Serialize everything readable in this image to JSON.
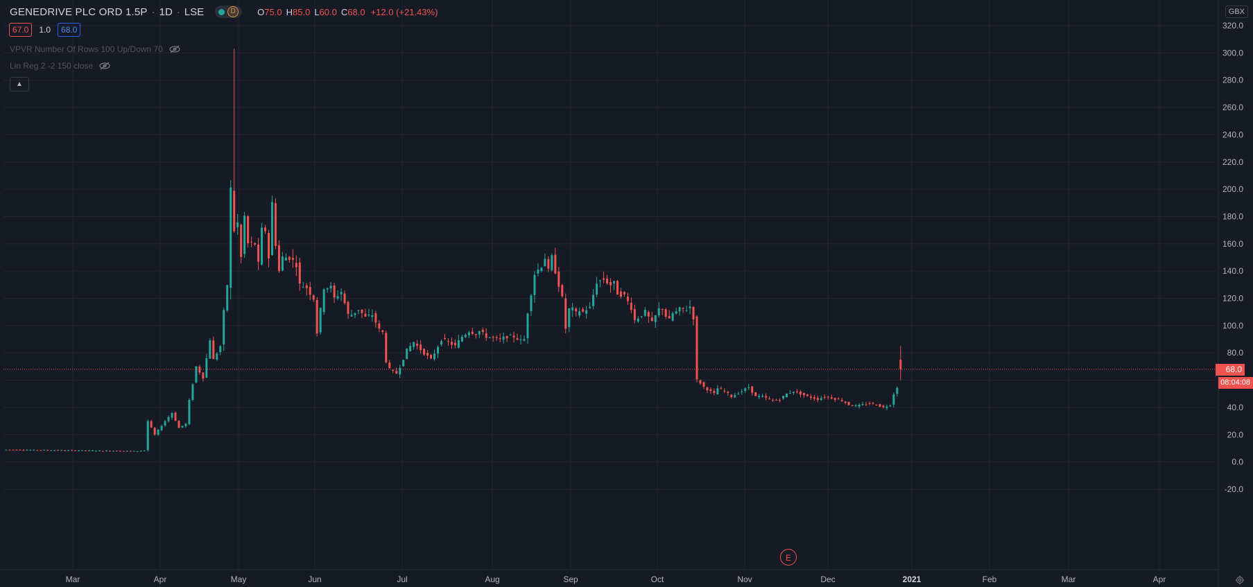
{
  "header": {
    "symbol": "GENEDRIVE PLC ORD 1.5P",
    "interval": "1D",
    "exchange": "LSE",
    "status_badge": "D",
    "ohlc": {
      "o_label": "O",
      "o": "75.0",
      "h_label": "H",
      "h": "85.0",
      "l_label": "L",
      "l": "60.0",
      "c_label": "C",
      "c": "68.0",
      "change": "+12.0 (+21.43%)"
    }
  },
  "spread": {
    "bid": "67.0",
    "spread": "1.0",
    "ask": "68.0"
  },
  "indicators": [
    {
      "label": "VPVR Number Of Rows 100 Up/Down 70"
    },
    {
      "label": "Lin Reg 2 -2 150 close"
    }
  ],
  "currency": "GBX",
  "last_price_tag": "68.0",
  "countdown": "08:04:08",
  "earnings_marker": "E",
  "colors": {
    "background": "#161a25",
    "up": "#26a69a",
    "down": "#ef5350",
    "grid": "#232632",
    "text": "#b2b5be"
  },
  "chart_data": {
    "type": "candlestick",
    "y_axis_ticks": [
      "320.0",
      "300.0",
      "280.0",
      "260.0",
      "240.0",
      "220.0",
      "200.0",
      "180.0",
      "160.0",
      "140.0",
      "120.0",
      "100.0",
      "80.0",
      "60.0",
      "40.0",
      "20.0",
      "0.0",
      "-20.0"
    ],
    "x_axis_ticks": [
      "Mar",
      "Apr",
      "May",
      "Jun",
      "Jul",
      "Aug",
      "Sep",
      "Oct",
      "Nov",
      "Dec",
      "2021",
      "Feb",
      "Mar",
      "Apr"
    ],
    "ylim": [
      -20,
      320
    ],
    "last_price": 68.0,
    "anchors": [
      [
        0,
        9
      ],
      [
        38,
        8
      ],
      [
        40,
        8.5
      ],
      [
        41,
        30
      ],
      [
        43,
        20
      ],
      [
        46,
        30
      ],
      [
        48,
        36
      ],
      [
        50,
        25
      ],
      [
        52,
        28
      ],
      [
        53,
        45
      ],
      [
        55,
        70
      ],
      [
        57,
        62
      ],
      [
        59,
        90
      ],
      [
        60,
        75
      ],
      [
        62,
        85
      ],
      [
        63,
        110
      ],
      [
        64,
        130
      ],
      [
        65,
        200
      ],
      [
        66,
        170
      ],
      [
        67,
        175
      ],
      [
        68,
        150
      ],
      [
        69,
        180
      ],
      [
        70,
        160
      ],
      [
        72,
        160
      ],
      [
        73,
        145
      ],
      [
        74,
        170
      ],
      [
        75,
        170
      ],
      [
        76,
        150
      ],
      [
        77,
        190
      ],
      [
        78,
        160
      ],
      [
        79,
        140
      ],
      [
        80,
        150
      ],
      [
        82,
        150
      ],
      [
        84,
        145
      ],
      [
        85,
        130
      ],
      [
        87,
        128
      ],
      [
        89,
        120
      ],
      [
        90,
        95
      ],
      [
        92,
        128
      ],
      [
        94,
        128
      ],
      [
        95,
        120
      ],
      [
        97,
        125
      ],
      [
        99,
        108
      ],
      [
        100,
        108
      ],
      [
        102,
        112
      ],
      [
        104,
        106
      ],
      [
        106,
        108
      ],
      [
        108,
        97
      ],
      [
        109,
        95
      ],
      [
        110,
        74
      ],
      [
        111,
        68
      ],
      [
        113,
        65
      ],
      [
        114,
        70
      ],
      [
        116,
        82
      ],
      [
        118,
        88
      ],
      [
        119,
        85
      ],
      [
        121,
        80
      ],
      [
        123,
        75
      ],
      [
        124,
        80
      ],
      [
        126,
        90
      ],
      [
        128,
        88
      ],
      [
        130,
        85
      ],
      [
        132,
        92
      ],
      [
        134,
        96
      ],
      [
        136,
        94
      ],
      [
        137,
        96
      ],
      [
        139,
        92
      ],
      [
        141,
        91
      ],
      [
        143,
        90
      ],
      [
        145,
        92
      ],
      [
        147,
        92
      ],
      [
        149,
        89
      ],
      [
        150,
        90
      ],
      [
        151,
        110
      ],
      [
        153,
        138
      ],
      [
        155,
        144
      ],
      [
        156,
        150
      ],
      [
        157,
        140
      ],
      [
        158,
        150
      ],
      [
        160,
        130
      ],
      [
        161,
        120
      ],
      [
        162,
        98
      ],
      [
        163,
        112
      ],
      [
        164,
        112
      ],
      [
        165,
        109
      ],
      [
        166,
        111
      ],
      [
        167,
        110
      ],
      [
        168,
        112
      ],
      [
        169,
        113
      ],
      [
        171,
        132
      ],
      [
        173,
        134
      ],
      [
        175,
        130
      ],
      [
        176,
        131
      ],
      [
        177,
        124
      ],
      [
        179,
        122
      ],
      [
        181,
        113
      ],
      [
        182,
        104
      ],
      [
        183,
        106
      ],
      [
        185,
        110
      ],
      [
        187,
        102
      ],
      [
        189,
        112
      ],
      [
        190,
        113
      ],
      [
        191,
        107
      ],
      [
        192,
        104
      ],
      [
        193,
        109
      ],
      [
        194,
        110
      ],
      [
        195,
        112
      ],
      [
        197,
        112
      ],
      [
        198,
        114
      ],
      [
        199,
        106
      ],
      [
        200,
        60
      ],
      [
        201,
        58
      ],
      [
        202,
        55
      ],
      [
        205,
        50
      ],
      [
        206,
        54
      ],
      [
        208,
        52
      ],
      [
        210,
        48
      ],
      [
        213,
        52
      ],
      [
        215,
        55
      ],
      [
        217,
        48
      ],
      [
        219,
        48
      ],
      [
        222,
        45
      ],
      [
        224,
        46
      ],
      [
        226,
        50
      ],
      [
        228,
        52
      ],
      [
        230,
        50
      ],
      [
        232,
        48
      ],
      [
        235,
        46
      ],
      [
        237,
        48
      ],
      [
        239,
        47
      ],
      [
        242,
        45
      ],
      [
        244,
        42
      ],
      [
        246,
        41
      ],
      [
        248,
        42
      ],
      [
        250,
        43
      ],
      [
        252,
        42
      ],
      [
        254,
        40
      ],
      [
        256,
        42
      ],
      [
        257,
        50
      ],
      [
        258,
        55
      ],
      [
        259,
        68
      ]
    ],
    "last_candle": {
      "open": 75.0,
      "high": 85.0,
      "low": 60.0,
      "close": 68.0
    },
    "peak_candle": {
      "high": 303.0
    }
  }
}
